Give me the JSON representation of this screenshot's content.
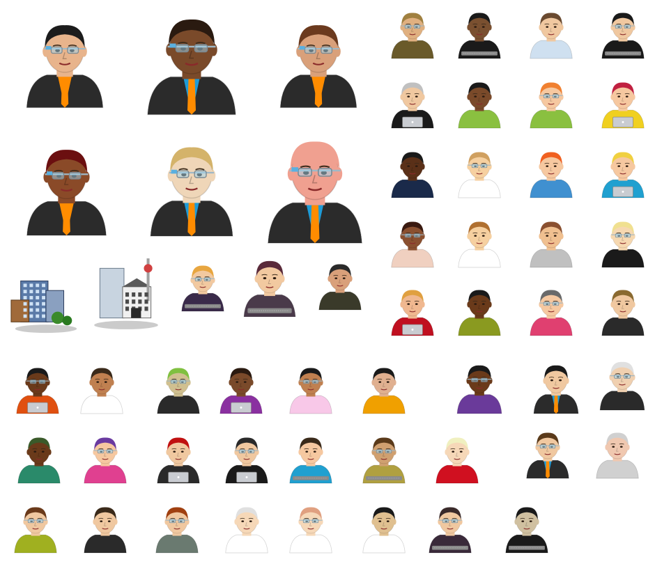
{
  "palette": {
    "background": "#ffffff",
    "suit": "#2b2b2b",
    "tie": "#ff8c00",
    "shirt_blue": "#1e9bd7",
    "glasses": "#9fb8c6",
    "keyboard": "#8a8a8a",
    "laptop": "#c9ccd1"
  },
  "gallery": {
    "large_row_1": [
      {
        "kind": "person-glasses-headset",
        "skin": "#e8b48c",
        "hair": "#1c1c1c",
        "outfit": "suit-orange"
      },
      {
        "kind": "person-glasses-headset",
        "skin": "#7a4a2a",
        "hair": "#2a1a10",
        "outfit": "suit-blue-orange-tie"
      },
      {
        "kind": "person-glasses-headset",
        "skin": "#d9a07a",
        "hair": "#6b3a1e",
        "outfit": "suit-orange"
      }
    ],
    "large_row_2": [
      {
        "kind": "person-glasses-headset",
        "skin": "#8a4a28",
        "hair": "#6b0f10",
        "outfit": "suit-orange"
      },
      {
        "kind": "person-glasses-headset",
        "skin": "#efd6b8",
        "hair": "#d4b36a",
        "outfit": "suit-blue-orange-tie"
      },
      {
        "kind": "person-glasses-headset",
        "skin": "#f0a090",
        "hair": "#f0a090",
        "outfit": "suit-blue-orange-tie"
      }
    ],
    "buildings": [
      {
        "kind": "city-buildings-icon"
      },
      {
        "kind": "town-hall-icon"
      }
    ],
    "mid_row": [
      {
        "kind": "person-keyboard",
        "skin": "#f2c9a0",
        "hair": "#e8a640",
        "top": "#3a2a4a"
      },
      {
        "kind": "person-keyboard",
        "skin": "#f2c9a0",
        "hair": "#5a2a3a",
        "top": "#4a3a4a"
      },
      {
        "kind": "person-bust",
        "skin": "#d9a07a",
        "hair": "#2a2a2a",
        "top": "#3a3a2a"
      }
    ],
    "small_grid": [
      {
        "skin": "#e0b080",
        "hair": "#a08040",
        "top": "#6a5a2a"
      },
      {
        "skin": "#7a5030",
        "hair": "#1a1a1a",
        "top": "#1a1a1a"
      },
      {
        "skin": "#f0c8a0",
        "hair": "#6a4a30",
        "top": "#cfe0f0"
      },
      {
        "skin": "#f0c8a0",
        "hair": "#1a1a1a",
        "top": "#1a1a1a"
      },
      {
        "skin": "#f0c8a0",
        "hair": "#c0c0c0",
        "top": "#1a1a1a"
      },
      {
        "skin": "#7a4a2a",
        "hair": "#1a1a1a",
        "top": "#8ac040"
      },
      {
        "skin": "#f6c8a0",
        "hair": "#f08030",
        "top": "#8ac040"
      },
      {
        "skin": "#f6c8a0",
        "hair": "#c02040",
        "top": "#f0d020"
      },
      {
        "skin": "#5a3018",
        "hair": "#1a1a1a",
        "top": "#1a2a4a"
      },
      {
        "skin": "#f6d0a0",
        "hair": "#d0a060",
        "top": "#ffffff"
      },
      {
        "skin": "#f6c8a0",
        "hair": "#f06020",
        "top": "#4090d0"
      },
      {
        "skin": "#f6c8a0",
        "hair": "#f0d040",
        "top": "#20a0d0"
      },
      {
        "skin": "#8a5030",
        "hair": "#3a1a10",
        "top": "#f0d0c0"
      },
      {
        "skin": "#f6d0a0",
        "hair": "#b07030",
        "top": "#ffffff"
      },
      {
        "skin": "#f0c090",
        "hair": "#8a5030",
        "top": "#c0c0c0"
      },
      {
        "skin": "#f6d8b0",
        "hair": "#f0e090",
        "top": "#1a1a1a"
      },
      {
        "skin": "#f0b890",
        "hair": "#e0a040",
        "top": "#c01020"
      },
      {
        "skin": "#6a3a1a",
        "hair": "#1a1a1a",
        "top": "#8a9a20"
      },
      {
        "skin": "#f6c8a0",
        "hair": "#6a6a6a",
        "top": "#e04070"
      },
      {
        "skin": "#f0c8a0",
        "hair": "#8a6a30",
        "top": "#2a2a2a"
      }
    ],
    "bottom_rows": [
      {
        "skin": "#6a3a1a",
        "hair": "#1a1a1a",
        "top": "#e05010"
      },
      {
        "skin": "#c08050",
        "hair": "#3a2a1a",
        "top": "#ffffff"
      },
      {
        "skin": "#d0c090",
        "hair": "#80c040",
        "top": "#2a2a2a"
      },
      {
        "skin": "#7a4a2a",
        "hair": "#2a1a10",
        "top": "#8a30a0"
      },
      {
        "skin": "#c08050",
        "hair": "#1a1a1a",
        "top": "#f8c8e8"
      },
      {
        "skin": "#e0b090",
        "hair": "#1a1a1a",
        "top": "#f0a000"
      },
      {
        "skin": "#6a3a1a",
        "hair": "#1a1a1a",
        "top": "#6a3a9a"
      },
      {
        "skin": "#f0c8a0",
        "hair": "#1a1a1a",
        "top": "#1a2a4a"
      },
      {
        "skin": "#f0d0b0",
        "hair": "#e0e0e0",
        "top": "#2a2a2a"
      },
      {
        "skin": "#6a3a1a",
        "hair": "#3a5a2a",
        "top": "#2a8a6a"
      },
      {
        "skin": "#f6c8a0",
        "hair": "#6a3aa0",
        "top": "#e04090"
      },
      {
        "skin": "#f0c8a0",
        "hair": "#c01010",
        "top": "#2a2a2a"
      },
      {
        "skin": "#f0c8a0",
        "hair": "#2a2a2a",
        "top": "#1a1a1a"
      },
      {
        "skin": "#f6c8a0",
        "hair": "#3a2a1a",
        "top": "#20a0d0"
      },
      {
        "skin": "#d0a070",
        "hair": "#5a3a1a",
        "top": "#b0a040"
      },
      {
        "skin": "#f6d8b8",
        "hair": "#f0f0c0",
        "top": "#d01020"
      },
      {
        "skin": "#f0c8a0",
        "hair": "#5a3a1a",
        "top": "#1a2a4a"
      },
      {
        "skin": "#f0c8b0",
        "hair": "#d0d0d0",
        "top": "#d0d0d0"
      },
      {
        "skin": "#f0c8a0",
        "hair": "#6a3a1a",
        "top": "#a0b020"
      },
      {
        "skin": "#f0c8a0",
        "hair": "#3a2a1a",
        "top": "#2a2a2a"
      },
      {
        "skin": "#f0c8a0",
        "hair": "#a04010",
        "top": "#6a7a70"
      },
      {
        "skin": "#f6d8b8",
        "hair": "#e0e0e0",
        "top": "#ffffff"
      },
      {
        "skin": "#f6d8b8",
        "hair": "#e0a080",
        "top": "#ffffff"
      },
      {
        "skin": "#e0c090",
        "hair": "#1a1a1a",
        "top": "#ffffff"
      },
      {
        "skin": "#f0c8a0",
        "hair": "#3a2a2a",
        "top": "#3a2a3a"
      },
      {
        "skin": "#d0c0a0",
        "hair": "#1a1a1a",
        "top": "#1a1a1a"
      }
    ]
  }
}
